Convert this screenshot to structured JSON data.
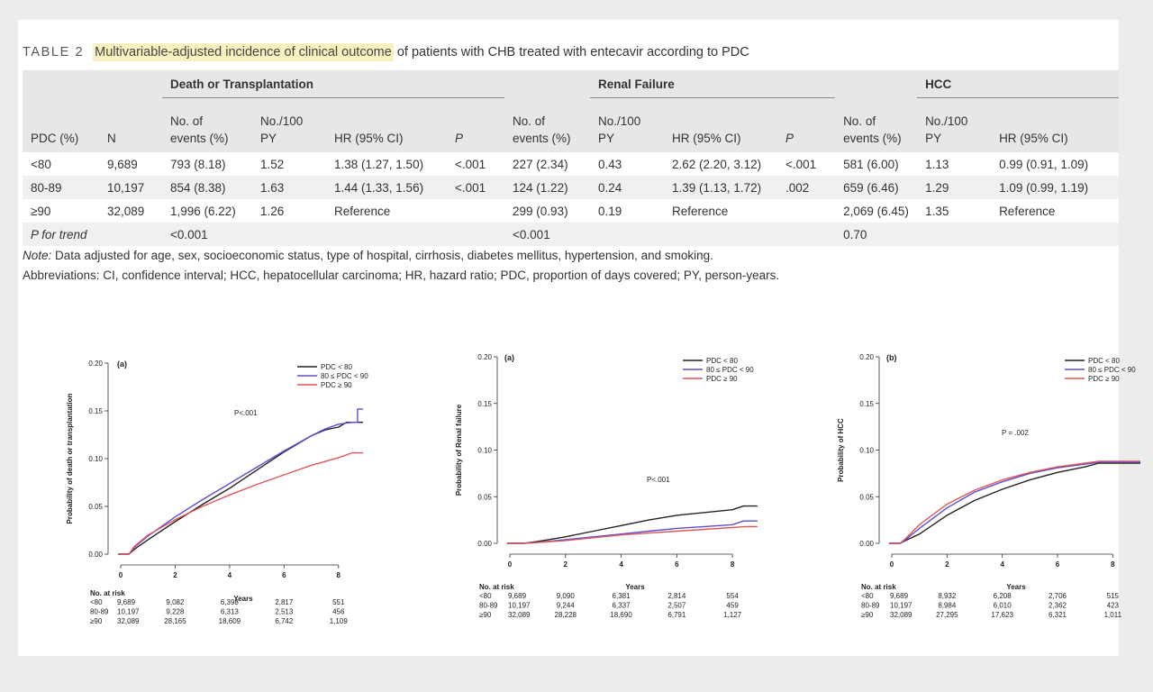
{
  "table": {
    "label": "TABLE 2",
    "title_highlight": "Multivariable-adjusted incidence of clinical outcome",
    "title_rest": "of patients with CHB treated with entecavir according to PDC",
    "groups": [
      "Death or Transplantation",
      "Renal Failure",
      "HCC"
    ],
    "headers": {
      "pdc": "PDC (%)",
      "n": "N",
      "events_1": "No. of",
      "events_2": "events (%)",
      "py_1": "No./100",
      "py_2": "PY",
      "hr": "HR (95% CI)",
      "p": "P"
    },
    "rows": [
      {
        "pdc": "<80",
        "n": "9,689",
        "d_ev": "793 (8.18)",
        "d_py": "1.52",
        "d_hr": "1.38 (1.27, 1.50)",
        "d_p": "<.001",
        "r_ev": "227 (2.34)",
        "r_py": "0.43",
        "r_hr": "2.62 (2.20, 3.12)",
        "r_p": "<.001",
        "h_ev": "581 (6.00)",
        "h_py": "1.13",
        "h_hr": "0.99 (0.91, 1.09)"
      },
      {
        "pdc": "80-89",
        "n": "10,197",
        "d_ev": "854 (8.38)",
        "d_py": "1.63",
        "d_hr": "1.44 (1.33, 1.56)",
        "d_p": "<.001",
        "r_ev": "124 (1.22)",
        "r_py": "0.24",
        "r_hr": "1.39 (1.13, 1.72)",
        "r_p": ".002",
        "h_ev": "659 (6.46)",
        "h_py": "1.29",
        "h_hr": "1.09 (0.99, 1.19)"
      },
      {
        "pdc": "≥90",
        "n": "32,089",
        "d_ev": "1,996 (6.22)",
        "d_py": "1.26",
        "d_hr": "Reference",
        "d_p": "",
        "r_ev": "299 (0.93)",
        "r_py": "0.19",
        "r_hr": "Reference",
        "r_p": "",
        "h_ev": "2,069 (6.45)",
        "h_py": "1.35",
        "h_hr": "Reference"
      }
    ],
    "trend": {
      "label": "P for trend",
      "death": "<0.001",
      "renal": "<0.001",
      "hcc": "0.70"
    },
    "note_label": "Note:",
    "note_text": "Data adjusted for age, sex, socioeconomic status, type of hospital, cirrhosis, diabetes mellitus, hypertension, and smoking.",
    "abbreviations": "Abbreviations: CI, confidence interval; HCC, hepatocellular carcinoma; HR, hazard ratio; PDC, proportion of days covered; PY, person-years."
  },
  "colors": {
    "pdc_lt80": "#222222",
    "pdc_80_90": "#5b4fcf",
    "pdc_ge90": "#e0555a",
    "axis": "#333333"
  },
  "chart_data": [
    {
      "type": "line",
      "panel_label": "(a)",
      "ylabel": "Probability of death or transplantation",
      "xlabel": "Years",
      "ylim": [
        0,
        0.2
      ],
      "xlim": [
        0,
        9
      ],
      "yticks": [
        "0.00",
        "0.05",
        "0.10",
        "0.15",
        "0.20"
      ],
      "xticks": [
        "0",
        "2",
        "4",
        "6",
        "8"
      ],
      "annotation": "P<.001",
      "legend": [
        "PDC < 80",
        "80 ≤ PDC < 90",
        "PDC ≥ 90"
      ],
      "series": [
        {
          "name": "PDC < 80",
          "color": "#222222",
          "points": [
            [
              -0.1,
              0
            ],
            [
              0.3,
              0
            ],
            [
              0.5,
              0.005
            ],
            [
              1,
              0.015
            ],
            [
              2,
              0.034
            ],
            [
              3,
              0.052
            ],
            [
              4,
              0.069
            ],
            [
              5,
              0.088
            ],
            [
              6,
              0.107
            ],
            [
              7,
              0.124
            ],
            [
              7.5,
              0.13
            ],
            [
              8,
              0.133
            ],
            [
              8.3,
              0.138
            ],
            [
              8.9,
              0.138
            ]
          ]
        },
        {
          "name": "80 ≤ PDC < 90",
          "color": "#5b4fcf",
          "points": [
            [
              -0.1,
              0
            ],
            [
              0.3,
              0
            ],
            [
              0.5,
              0.007
            ],
            [
              1,
              0.019
            ],
            [
              2,
              0.039
            ],
            [
              3,
              0.057
            ],
            [
              4,
              0.074
            ],
            [
              5,
              0.091
            ],
            [
              6,
              0.108
            ],
            [
              7,
              0.124
            ],
            [
              7.5,
              0.131
            ],
            [
              8,
              0.136
            ],
            [
              8.5,
              0.138
            ],
            [
              8.7,
              0.138
            ],
            [
              8.7,
              0.152
            ],
            [
              8.9,
              0.152
            ]
          ]
        },
        {
          "name": "PDC ≥ 90",
          "color": "#e0555a",
          "points": [
            [
              -0.1,
              0
            ],
            [
              0.3,
              0
            ],
            [
              0.5,
              0.008
            ],
            [
              1,
              0.02
            ],
            [
              2,
              0.036
            ],
            [
              3,
              0.05
            ],
            [
              4,
              0.062
            ],
            [
              5,
              0.073
            ],
            [
              6,
              0.083
            ],
            [
              7,
              0.093
            ],
            [
              7.5,
              0.097
            ],
            [
              8,
              0.101
            ],
            [
              8.5,
              0.106
            ],
            [
              8.9,
              0.106
            ]
          ]
        }
      ],
      "risk_table": {
        "title": "No. at risk",
        "rows": [
          {
            "label": "<80",
            "values": [
              "9,689",
              "9,082",
              "6,398",
              "2,817",
              "551"
            ]
          },
          {
            "label": "80-89",
            "values": [
              "10,197",
              "9,228",
              "6,313",
              "2,513",
              "456"
            ]
          },
          {
            "label": "≥90",
            "values": [
              "32,089",
              "28,165",
              "18,609",
              "6,742",
              "1,109"
            ]
          }
        ]
      }
    },
    {
      "type": "line",
      "panel_label": "(a)",
      "ylabel": "Probability of Renal failure",
      "xlabel": "Years",
      "ylim": [
        0,
        0.2
      ],
      "xlim": [
        0,
        9
      ],
      "yticks": [
        "0.00",
        "0.05",
        "0.10",
        "0.15",
        "0.20"
      ],
      "xticks": [
        "0",
        "2",
        "4",
        "6",
        "8"
      ],
      "annotation": "P<.001",
      "legend": [
        "PDC < 80",
        "80 ≤ PDC < 90",
        "PDC ≥ 90"
      ],
      "series": [
        {
          "name": "PDC < 80",
          "color": "#222222",
          "points": [
            [
              -0.1,
              0
            ],
            [
              0.5,
              0
            ],
            [
              1,
              0.002
            ],
            [
              2,
              0.007
            ],
            [
              3,
              0.013
            ],
            [
              4,
              0.019
            ],
            [
              5,
              0.025
            ],
            [
              6,
              0.03
            ],
            [
              7,
              0.033
            ],
            [
              8,
              0.036
            ],
            [
              8.4,
              0.04
            ],
            [
              8.9,
              0.04
            ]
          ]
        },
        {
          "name": "80 ≤ PDC < 90",
          "color": "#5b4fcf",
          "points": [
            [
              -0.1,
              0
            ],
            [
              0.5,
              0
            ],
            [
              1,
              0.001
            ],
            [
              2,
              0.004
            ],
            [
              3,
              0.007
            ],
            [
              4,
              0.01
            ],
            [
              5,
              0.013
            ],
            [
              6,
              0.016
            ],
            [
              7,
              0.018
            ],
            [
              8,
              0.02
            ],
            [
              8.4,
              0.024
            ],
            [
              8.9,
              0.024
            ]
          ]
        },
        {
          "name": "PDC ≥ 90",
          "color": "#e0555a",
          "points": [
            [
              -0.1,
              0
            ],
            [
              0.5,
              0
            ],
            [
              1,
              0.001
            ],
            [
              2,
              0.003
            ],
            [
              3,
              0.006
            ],
            [
              4,
              0.009
            ],
            [
              5,
              0.011
            ],
            [
              6,
              0.013
            ],
            [
              7,
              0.015
            ],
            [
              8,
              0.017
            ],
            [
              8.5,
              0.018
            ],
            [
              8.9,
              0.018
            ]
          ]
        }
      ],
      "risk_table": {
        "title": "No. at risk",
        "rows": [
          {
            "label": "<80",
            "values": [
              "9,689",
              "9,090",
              "6,381",
              "2,814",
              "554"
            ]
          },
          {
            "label": "80-89",
            "values": [
              "10,197",
              "9,244",
              "6,337",
              "2,507",
              "459"
            ]
          },
          {
            "label": "≥90",
            "values": [
              "32,089",
              "28,228",
              "18,690",
              "6,791",
              "1,127"
            ]
          }
        ]
      }
    },
    {
      "type": "line",
      "panel_label": "(b)",
      "ylabel": "Probability of HCC",
      "xlabel": "Years",
      "ylim": [
        0,
        0.2
      ],
      "xlim": [
        0,
        9
      ],
      "yticks": [
        "0.00",
        "0.05",
        "0.10",
        "0.15",
        "0.20"
      ],
      "xticks": [
        "0",
        "2",
        "4",
        "6",
        "8"
      ],
      "annotation": "P = .002",
      "legend": [
        "PDC < 80",
        "80 ≤ PDC < 90",
        "PDC ≥ 90"
      ],
      "series": [
        {
          "name": "PDC < 80",
          "color": "#222222",
          "points": [
            [
              -0.1,
              0
            ],
            [
              0.3,
              0
            ],
            [
              0.5,
              0.003
            ],
            [
              1,
              0.01
            ],
            [
              2,
              0.03
            ],
            [
              3,
              0.046
            ],
            [
              4,
              0.058
            ],
            [
              5,
              0.068
            ],
            [
              6,
              0.076
            ],
            [
              7,
              0.082
            ],
            [
              7.5,
              0.086
            ],
            [
              8,
              0.086
            ],
            [
              9,
              0.086
            ]
          ]
        },
        {
          "name": "80 ≤ PDC < 90",
          "color": "#5b4fcf",
          "points": [
            [
              -0.1,
              0
            ],
            [
              0.3,
              0
            ],
            [
              0.5,
              0.004
            ],
            [
              1,
              0.016
            ],
            [
              2,
              0.038
            ],
            [
              3,
              0.055
            ],
            [
              4,
              0.066
            ],
            [
              5,
              0.075
            ],
            [
              6,
              0.081
            ],
            [
              7,
              0.085
            ],
            [
              7.5,
              0.087
            ],
            [
              9,
              0.087
            ]
          ]
        },
        {
          "name": "PDC ≥ 90",
          "color": "#e0555a",
          "points": [
            [
              -0.1,
              0
            ],
            [
              0.3,
              0
            ],
            [
              0.5,
              0.005
            ],
            [
              1,
              0.02
            ],
            [
              2,
              0.042
            ],
            [
              3,
              0.057
            ],
            [
              4,
              0.068
            ],
            [
              5,
              0.076
            ],
            [
              6,
              0.082
            ],
            [
              7,
              0.086
            ],
            [
              7.5,
              0.088
            ],
            [
              9,
              0.088
            ]
          ]
        }
      ],
      "risk_table": {
        "title": "No. at risk",
        "rows": [
          {
            "label": "<80",
            "values": [
              "9,689",
              "8,932",
              "6,208",
              "2,706",
              "515"
            ]
          },
          {
            "label": "80-89",
            "values": [
              "10,197",
              "8,984",
              "6,010",
              "2,362",
              "423"
            ]
          },
          {
            "label": "≥90",
            "values": [
              "32,089",
              "27,295",
              "17,623",
              "6,321",
              "1,011"
            ]
          }
        ]
      }
    }
  ]
}
